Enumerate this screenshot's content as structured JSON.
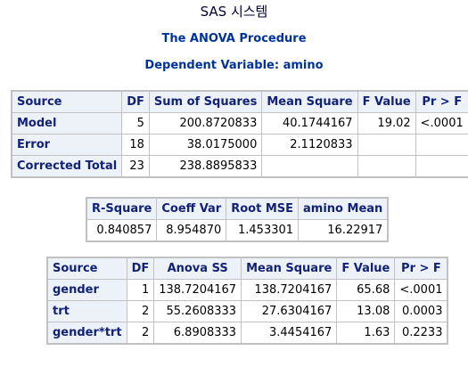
{
  "header": {
    "system_title": "SAS 시스템",
    "procedure": "The ANOVA Procedure",
    "dependent": "Dependent Variable: amino"
  },
  "anova_table": {
    "columns": [
      "Source",
      "DF",
      "Sum of Squares",
      "Mean Square",
      "F Value",
      "Pr > F"
    ],
    "rows": [
      {
        "source": "Model",
        "df": "5",
        "ss": "200.8720833",
        "ms": "40.1744167",
        "f": "19.02",
        "p": "<.0001"
      },
      {
        "source": "Error",
        "df": "18",
        "ss": "38.0175000",
        "ms": "2.1120833",
        "f": "",
        "p": ""
      },
      {
        "source": "Corrected Total",
        "df": "23",
        "ss": "238.8895833",
        "ms": "",
        "f": "",
        "p": ""
      }
    ]
  },
  "fit_table": {
    "columns": [
      "R-Square",
      "Coeff Var",
      "Root MSE",
      "amino Mean"
    ],
    "values": [
      "0.840857",
      "8.954870",
      "1.453301",
      "16.22917"
    ]
  },
  "effects_table": {
    "columns": [
      "Source",
      "DF",
      "Anova SS",
      "Mean Square",
      "F Value",
      "Pr > F"
    ],
    "rows": [
      {
        "source": "gender",
        "df": "1",
        "ss": "138.7204167",
        "ms": "138.7204167",
        "f": "65.68",
        "p": "<.0001"
      },
      {
        "source": "trt",
        "df": "2",
        "ss": "55.2608333",
        "ms": "27.6304167",
        "f": "13.08",
        "p": "0.0003"
      },
      {
        "source": "gender*trt",
        "df": "2",
        "ss": "6.8908333",
        "ms": "3.4454167",
        "f": "1.63",
        "p": "0.2233"
      }
    ]
  },
  "colors": {
    "header_bg": "#edf2f9",
    "header_text": "#112277",
    "title_text": "#003399",
    "grid": "#c1c1c1"
  }
}
